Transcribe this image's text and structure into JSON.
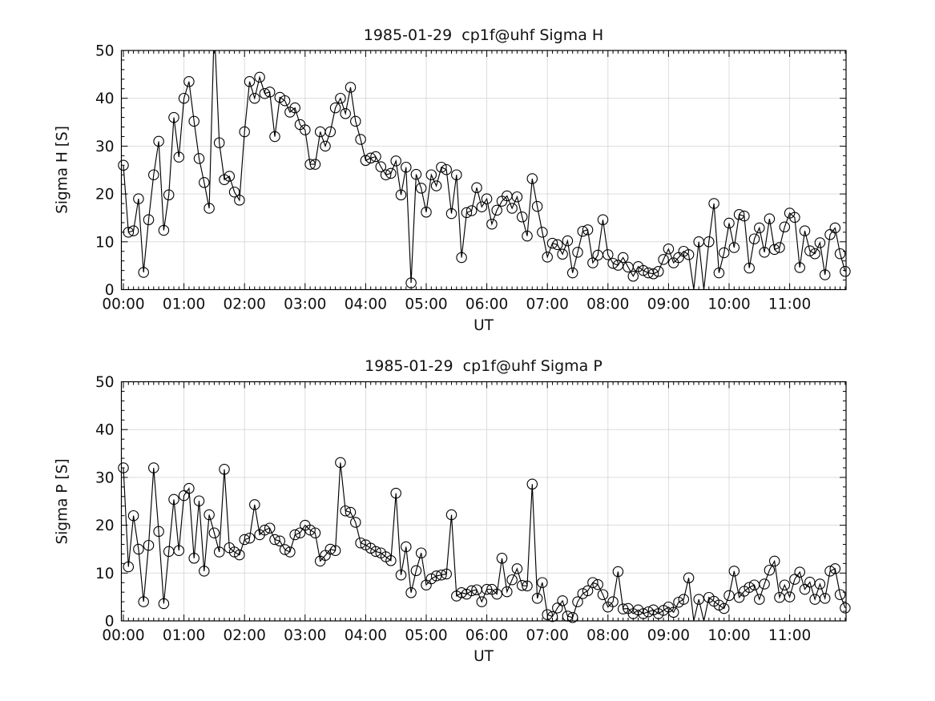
{
  "figure": {
    "background_color": "#ffffff",
    "text_color": "#111111"
  },
  "chart_data": [
    {
      "type": "line",
      "title": "1985-01-29  cp1f@uhf Sigma H",
      "xlabel": "UT",
      "ylabel": "Sigma H [S]",
      "ylim": [
        0,
        50
      ],
      "y_tick_labels": [
        "0",
        "10",
        "20",
        "30",
        "40",
        "50"
      ],
      "y_minor_step": 2,
      "x_tick_labels": [
        "00:00",
        "01:00",
        "02:00",
        "03:00",
        "04:00",
        "05:00",
        "06:00",
        "07:00",
        "08:00",
        "09:00",
        "10:00",
        "11:00"
      ],
      "x_minutes_per_point": 5,
      "grid": "on",
      "legend": "none",
      "marker": "open-circle",
      "line_color": "#000000",
      "grid_color": "#d8d8d8",
      "values": [
        26,
        12,
        12.3,
        19,
        3.6,
        14.6,
        24,
        31,
        12.4,
        19.8,
        36,
        27.7,
        40,
        43.5,
        35.2,
        27.4,
        22.4,
        17,
        55,
        30.7,
        23,
        23.7,
        20.4,
        18.7,
        33,
        43.5,
        40,
        44.4,
        41,
        41.3,
        32,
        40.2,
        39.5,
        37.1,
        38,
        34.5,
        33.4,
        26.2,
        26.2,
        33,
        30,
        33,
        38,
        40,
        36.8,
        42.3,
        35.2,
        31.4,
        27,
        27.5,
        27.8,
        25.7,
        24,
        24.3,
        26.9,
        19.8,
        25.6,
        1.4,
        24.1,
        21.2,
        16.2,
        24,
        21.7,
        25.6,
        25.1,
        15.9,
        24,
        6.7,
        16.1,
        16.5,
        21.3,
        17.3,
        19,
        13.7,
        16.6,
        18.5,
        19.6,
        17,
        19.4,
        15.2,
        11.2,
        23.2,
        17.4,
        12,
        6.8,
        9.7,
        9.4,
        7.4,
        10.2,
        3.5,
        7.8,
        12.2,
        12.5,
        5.6,
        7.2,
        14.6,
        7.3,
        5.5,
        5.1,
        6.7,
        4.7,
        2.8,
        4.8,
        4,
        3.5,
        3.3,
        3.8,
        6.3,
        8.5,
        5.6,
        6.7,
        8,
        7.3,
        0,
        10,
        0,
        10,
        18,
        3.5,
        7.7,
        13.9,
        8.8,
        15.7,
        15.4,
        4.5,
        10.6,
        12.9,
        7.8,
        14.8,
        8.4,
        8.8,
        13.1,
        16,
        15.1,
        4.6,
        12.3,
        8.1,
        7.5,
        9.8,
        3.1,
        11.5,
        12.9,
        7.5,
        3.8
      ]
    },
    {
      "type": "line",
      "title": "1985-01-29  cp1f@uhf Sigma P",
      "xlabel": "UT",
      "ylabel": "Sigma P [S]",
      "ylim": [
        0,
        50
      ],
      "y_tick_labels": [
        "0",
        "10",
        "20",
        "30",
        "40",
        "50"
      ],
      "y_minor_step": 2,
      "x_tick_labels": [
        "00:00",
        "01:00",
        "02:00",
        "03:00",
        "04:00",
        "05:00",
        "06:00",
        "07:00",
        "08:00",
        "09:00",
        "10:00",
        "11:00"
      ],
      "x_minutes_per_point": 5,
      "grid": "on",
      "legend": "none",
      "marker": "open-circle",
      "line_color": "#000000",
      "grid_color": "#d8d8d8",
      "values": [
        32,
        11.3,
        22,
        15,
        4,
        15.8,
        32,
        18.7,
        3.6,
        14.5,
        25.4,
        14.7,
        26.2,
        27.7,
        13.1,
        25.1,
        10.4,
        22.2,
        18.4,
        14.4,
        31.7,
        15.3,
        14.4,
        13.8,
        17,
        17.3,
        24.3,
        18,
        19,
        19.4,
        17,
        16.7,
        14.9,
        14.4,
        18,
        18.4,
        20,
        19,
        18.4,
        12.5,
        13.7,
        15,
        14.7,
        33.1,
        23,
        22.7,
        20.6,
        16.3,
        15.9,
        15.2,
        14.5,
        14.2,
        13.4,
        12.6,
        26.7,
        9.6,
        15.5,
        5.9,
        10.5,
        14.2,
        7.5,
        8.8,
        9.4,
        9.6,
        9.8,
        22.2,
        5.2,
        5.9,
        5.6,
        6.3,
        6.5,
        4,
        6.6,
        6.6,
        5.6,
        13.1,
        6.1,
        8.6,
        10.9,
        7.4,
        7.3,
        28.6,
        4.7,
        8,
        1.3,
        0.9,
        2.7,
        4.2,
        1,
        0.7,
        4,
        5.7,
        6.3,
        8,
        7.6,
        5.5,
        2.9,
        4,
        10.3,
        2.5,
        2.6,
        1.5,
        2.3,
        1.5,
        1.9,
        2.3,
        1.5,
        2.2,
        2.9,
        1.8,
        3.9,
        4.5,
        9,
        0,
        4.5,
        0,
        4.9,
        4.1,
        3.3,
        2.6,
        5.3,
        10.4,
        4.9,
        6.2,
        7,
        7.5,
        4.5,
        7.7,
        10.6,
        12.5,
        4.9,
        7.5,
        5,
        8.7,
        10.2,
        6.6,
        8.1,
        4.5,
        7.7,
        4.7,
        10.4,
        10.9,
        5.5,
        2.7
      ]
    }
  ]
}
